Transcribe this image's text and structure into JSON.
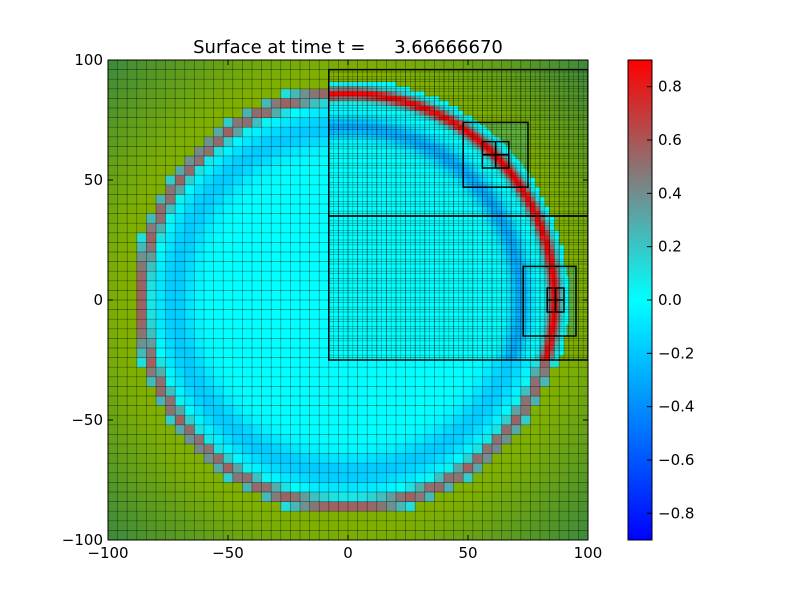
{
  "chart_data": {
    "type": "heatmap",
    "title": "Surface at time t =     3.66666670",
    "xlabel": "",
    "ylabel": "",
    "xlim": [
      -100,
      100
    ],
    "ylim": [
      -100,
      100
    ],
    "x_ticks": [
      "−100",
      "−50",
      "0",
      "50",
      "100"
    ],
    "x_tick_values": [
      -100,
      -50,
      0,
      50,
      100
    ],
    "y_ticks": [
      "−100",
      "−50",
      "0",
      "50",
      "100"
    ],
    "y_tick_values": [
      -100,
      -50,
      0,
      50,
      100
    ],
    "colorbar": {
      "min": -0.9,
      "max": 0.9,
      "ticks": [
        "−0.8",
        "−0.6",
        "−0.4",
        "−0.2",
        "0.0",
        "0.2",
        "0.4",
        "0.6",
        "0.8"
      ],
      "tick_values": [
        -0.8,
        -0.6,
        -0.4,
        -0.2,
        0.0,
        0.2,
        0.4,
        0.6,
        0.8
      ],
      "colormap": [
        "#0000ff",
        "#00ffff",
        "#ff0000"
      ]
    },
    "wave": {
      "center": [
        0,
        0
      ],
      "crest_radius": 86,
      "inner_trough_radius": 72,
      "interior_value": 0.0,
      "crest_value": 0.9,
      "trough_value": -0.3
    },
    "land_colors": [
      "#7fb000",
      "#3e8a3a",
      "#5fb03a"
    ],
    "grid_patches": [
      {
        "level": 1,
        "x": [
          -100,
          100
        ],
        "y": [
          -100,
          100
        ]
      },
      {
        "level": 2,
        "x": [
          -8,
          100
        ],
        "y": [
          35,
          96
        ]
      },
      {
        "level": 2,
        "x": [
          -8,
          100
        ],
        "y": [
          -25,
          35
        ]
      },
      {
        "level": 3,
        "x": [
          48,
          75
        ],
        "y": [
          47,
          74
        ]
      },
      {
        "level": 3,
        "x": [
          73,
          95
        ],
        "y": [
          -15,
          14
        ]
      },
      {
        "level": 4,
        "x": [
          56,
          67
        ],
        "y": [
          55,
          66
        ]
      },
      {
        "level": 4,
        "x": [
          83,
          90
        ],
        "y": [
          -5,
          5
        ]
      }
    ]
  }
}
